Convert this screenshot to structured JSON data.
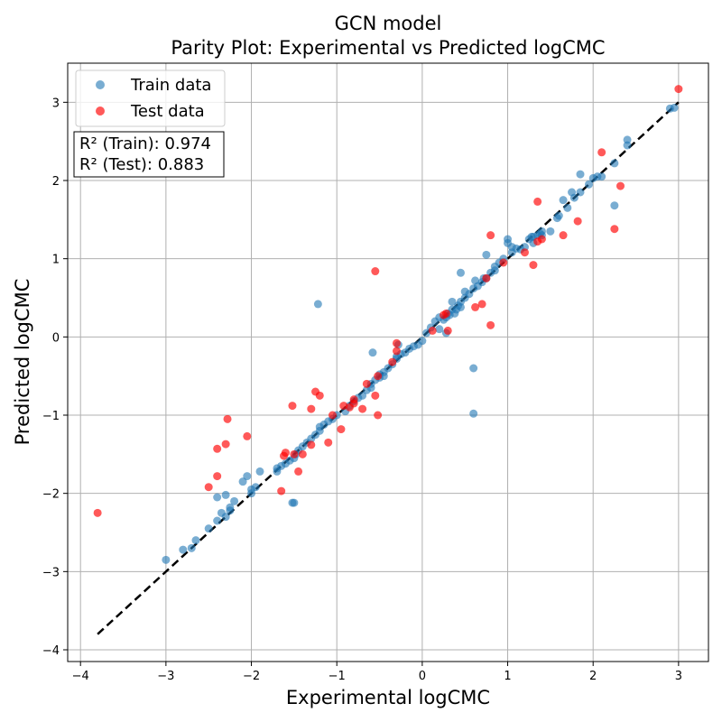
{
  "chart_data": {
    "type": "scatter",
    "title": "GCN model",
    "subtitle": "Parity Plot: Experimental vs Predicted logCMC",
    "xlabel": "Experimental logCMC",
    "ylabel": "Predicted logCMC",
    "xlim": [
      -4.15,
      3.35
    ],
    "ylim": [
      -4.15,
      3.5
    ],
    "xticks": [
      -4,
      -3,
      -2,
      -1,
      0,
      1,
      2,
      3
    ],
    "yticks": [
      -4,
      -3,
      -2,
      -1,
      0,
      1,
      2,
      3
    ],
    "grid": true,
    "legend_position": "top-left",
    "annotation": {
      "lines": [
        "R² (Train): 0.974",
        "R² (Test): 0.883"
      ]
    },
    "reference_line": {
      "style": "dashed",
      "color": "#000000",
      "x": [
        -3.8,
        3.0
      ],
      "y": [
        -3.8,
        3.0
      ]
    },
    "series": [
      {
        "name": "Train data",
        "color": "#1f77b4",
        "opacity": 0.6,
        "x": [
          2.95,
          2.9,
          2.4,
          2.4,
          2.25,
          2.05,
          2.1,
          2.0,
          1.95,
          1.85,
          1.85,
          1.78,
          1.75,
          1.7,
          1.65,
          1.6,
          1.58,
          1.5,
          1.4,
          1.4,
          1.35,
          1.3,
          1.3,
          1.25,
          1.2,
          1.15,
          1.1,
          1.05,
          1.0,
          1.0,
          0.95,
          0.9,
          0.85,
          0.85,
          0.8,
          0.75,
          0.72,
          0.7,
          0.65,
          0.62,
          0.6,
          0.55,
          0.5,
          0.45,
          0.45,
          0.42,
          0.4,
          0.38,
          0.35,
          0.32,
          0.3,
          0.28,
          0.25,
          0.2,
          0.15,
          0.1,
          0.05,
          0.0,
          -0.05,
          -0.1,
          -0.15,
          -0.2,
          -0.25,
          -0.3,
          -0.3,
          -0.35,
          -0.4,
          -0.45,
          -0.5,
          -0.5,
          -0.55,
          -0.6,
          -0.6,
          -0.65,
          -0.7,
          -0.75,
          -0.8,
          -0.85,
          -0.9,
          -1.0,
          -1.05,
          -1.1,
          -1.15,
          -1.2,
          -1.2,
          -1.25,
          -1.3,
          -1.35,
          -1.4,
          -1.45,
          -1.48,
          -1.5,
          -1.55,
          -1.6,
          -1.65,
          -1.7,
          -1.7,
          -1.9,
          -1.95,
          -2.0,
          -2.0,
          -2.05,
          -2.1,
          -2.2,
          -2.25,
          -2.25,
          -2.3,
          -2.3,
          -2.35,
          -2.4,
          -2.4,
          -2.5,
          -2.65,
          -2.7,
          -2.8,
          -3.0,
          -1.22,
          0.6,
          0.6,
          -0.58,
          0.45,
          0.35,
          0.28,
          0.75,
          0.2,
          0.5,
          1.05,
          -0.28,
          -0.45,
          1.28,
          1.38,
          2.25,
          -1.5,
          -1.52
        ],
        "y": [
          2.93,
          2.92,
          2.52,
          2.45,
          2.22,
          2.05,
          2.05,
          2.03,
          1.95,
          2.08,
          1.85,
          1.78,
          1.85,
          1.65,
          1.75,
          1.55,
          1.52,
          1.35,
          1.35,
          1.3,
          1.3,
          1.28,
          1.2,
          1.25,
          1.15,
          1.12,
          1.13,
          1.08,
          1.25,
          1.2,
          1.0,
          0.95,
          0.9,
          0.85,
          0.82,
          0.75,
          0.75,
          0.7,
          0.65,
          0.72,
          0.62,
          0.55,
          0.5,
          0.45,
          0.38,
          0.4,
          0.35,
          0.3,
          0.35,
          0.28,
          0.3,
          0.25,
          0.22,
          0.25,
          0.2,
          0.12,
          0.05,
          -0.05,
          -0.1,
          -0.12,
          -0.15,
          -0.2,
          -0.22,
          -0.25,
          -0.28,
          -0.35,
          -0.4,
          -0.45,
          -0.48,
          -0.52,
          -0.55,
          -0.6,
          -0.65,
          -0.68,
          -0.75,
          -0.78,
          -0.82,
          -0.88,
          -0.95,
          -1.0,
          -1.05,
          -1.08,
          -1.12,
          -1.15,
          -1.2,
          -1.25,
          -1.3,
          -1.35,
          -1.4,
          -1.45,
          -1.5,
          -1.55,
          -1.58,
          -1.62,
          -1.65,
          -1.68,
          -1.72,
          -1.72,
          -1.92,
          -1.95,
          -2.0,
          -1.78,
          -1.85,
          -2.1,
          -2.18,
          -2.22,
          -2.3,
          -2.02,
          -2.25,
          -2.35,
          -2.05,
          -2.45,
          -2.6,
          -2.7,
          -2.72,
          -2.85,
          0.42,
          -0.4,
          -0.98,
          -0.2,
          0.82,
          0.45,
          0.05,
          1.05,
          0.1,
          0.58,
          1.15,
          -0.1,
          -0.5,
          1.28,
          1.32,
          1.68,
          -2.12,
          -2.12
        ]
      },
      {
        "name": "Test data",
        "color": "#ff0000",
        "opacity": 0.65,
        "x": [
          3.0,
          2.1,
          2.32,
          2.25,
          1.82,
          1.65,
          1.4,
          1.35,
          1.3,
          1.2,
          1.35,
          0.95,
          0.8,
          0.8,
          0.75,
          0.7,
          0.62,
          0.3,
          0.28,
          0.25,
          0.12,
          -0.3,
          -0.3,
          -0.35,
          -0.52,
          -0.55,
          -0.55,
          -0.52,
          -0.65,
          -0.7,
          -0.8,
          -0.85,
          -0.95,
          -1.05,
          -1.1,
          -1.2,
          -1.25,
          -1.3,
          -1.3,
          -1.4,
          -1.45,
          -1.5,
          -1.52,
          -1.6,
          -1.62,
          -1.65,
          -2.05,
          -2.28,
          -2.3,
          -2.4,
          -2.4,
          -2.5,
          -3.8,
          -0.8,
          -0.92
        ],
        "y": [
          3.17,
          2.36,
          1.93,
          1.38,
          1.48,
          1.3,
          1.25,
          1.73,
          0.92,
          1.08,
          1.22,
          0.95,
          1.3,
          0.15,
          0.75,
          0.42,
          0.38,
          0.08,
          0.3,
          0.28,
          0.08,
          -0.08,
          -0.18,
          -0.32,
          -0.5,
          0.84,
          -0.75,
          -1.0,
          -0.6,
          -0.92,
          -0.85,
          -0.9,
          -1.18,
          -1.0,
          -1.35,
          -0.75,
          -0.7,
          -1.38,
          -0.92,
          -1.5,
          -1.72,
          -1.5,
          -0.88,
          -1.48,
          -1.52,
          -1.97,
          -1.27,
          -1.05,
          -1.37,
          -1.43,
          -1.78,
          -1.92,
          -2.25,
          -0.8,
          -0.88
        ]
      }
    ]
  }
}
